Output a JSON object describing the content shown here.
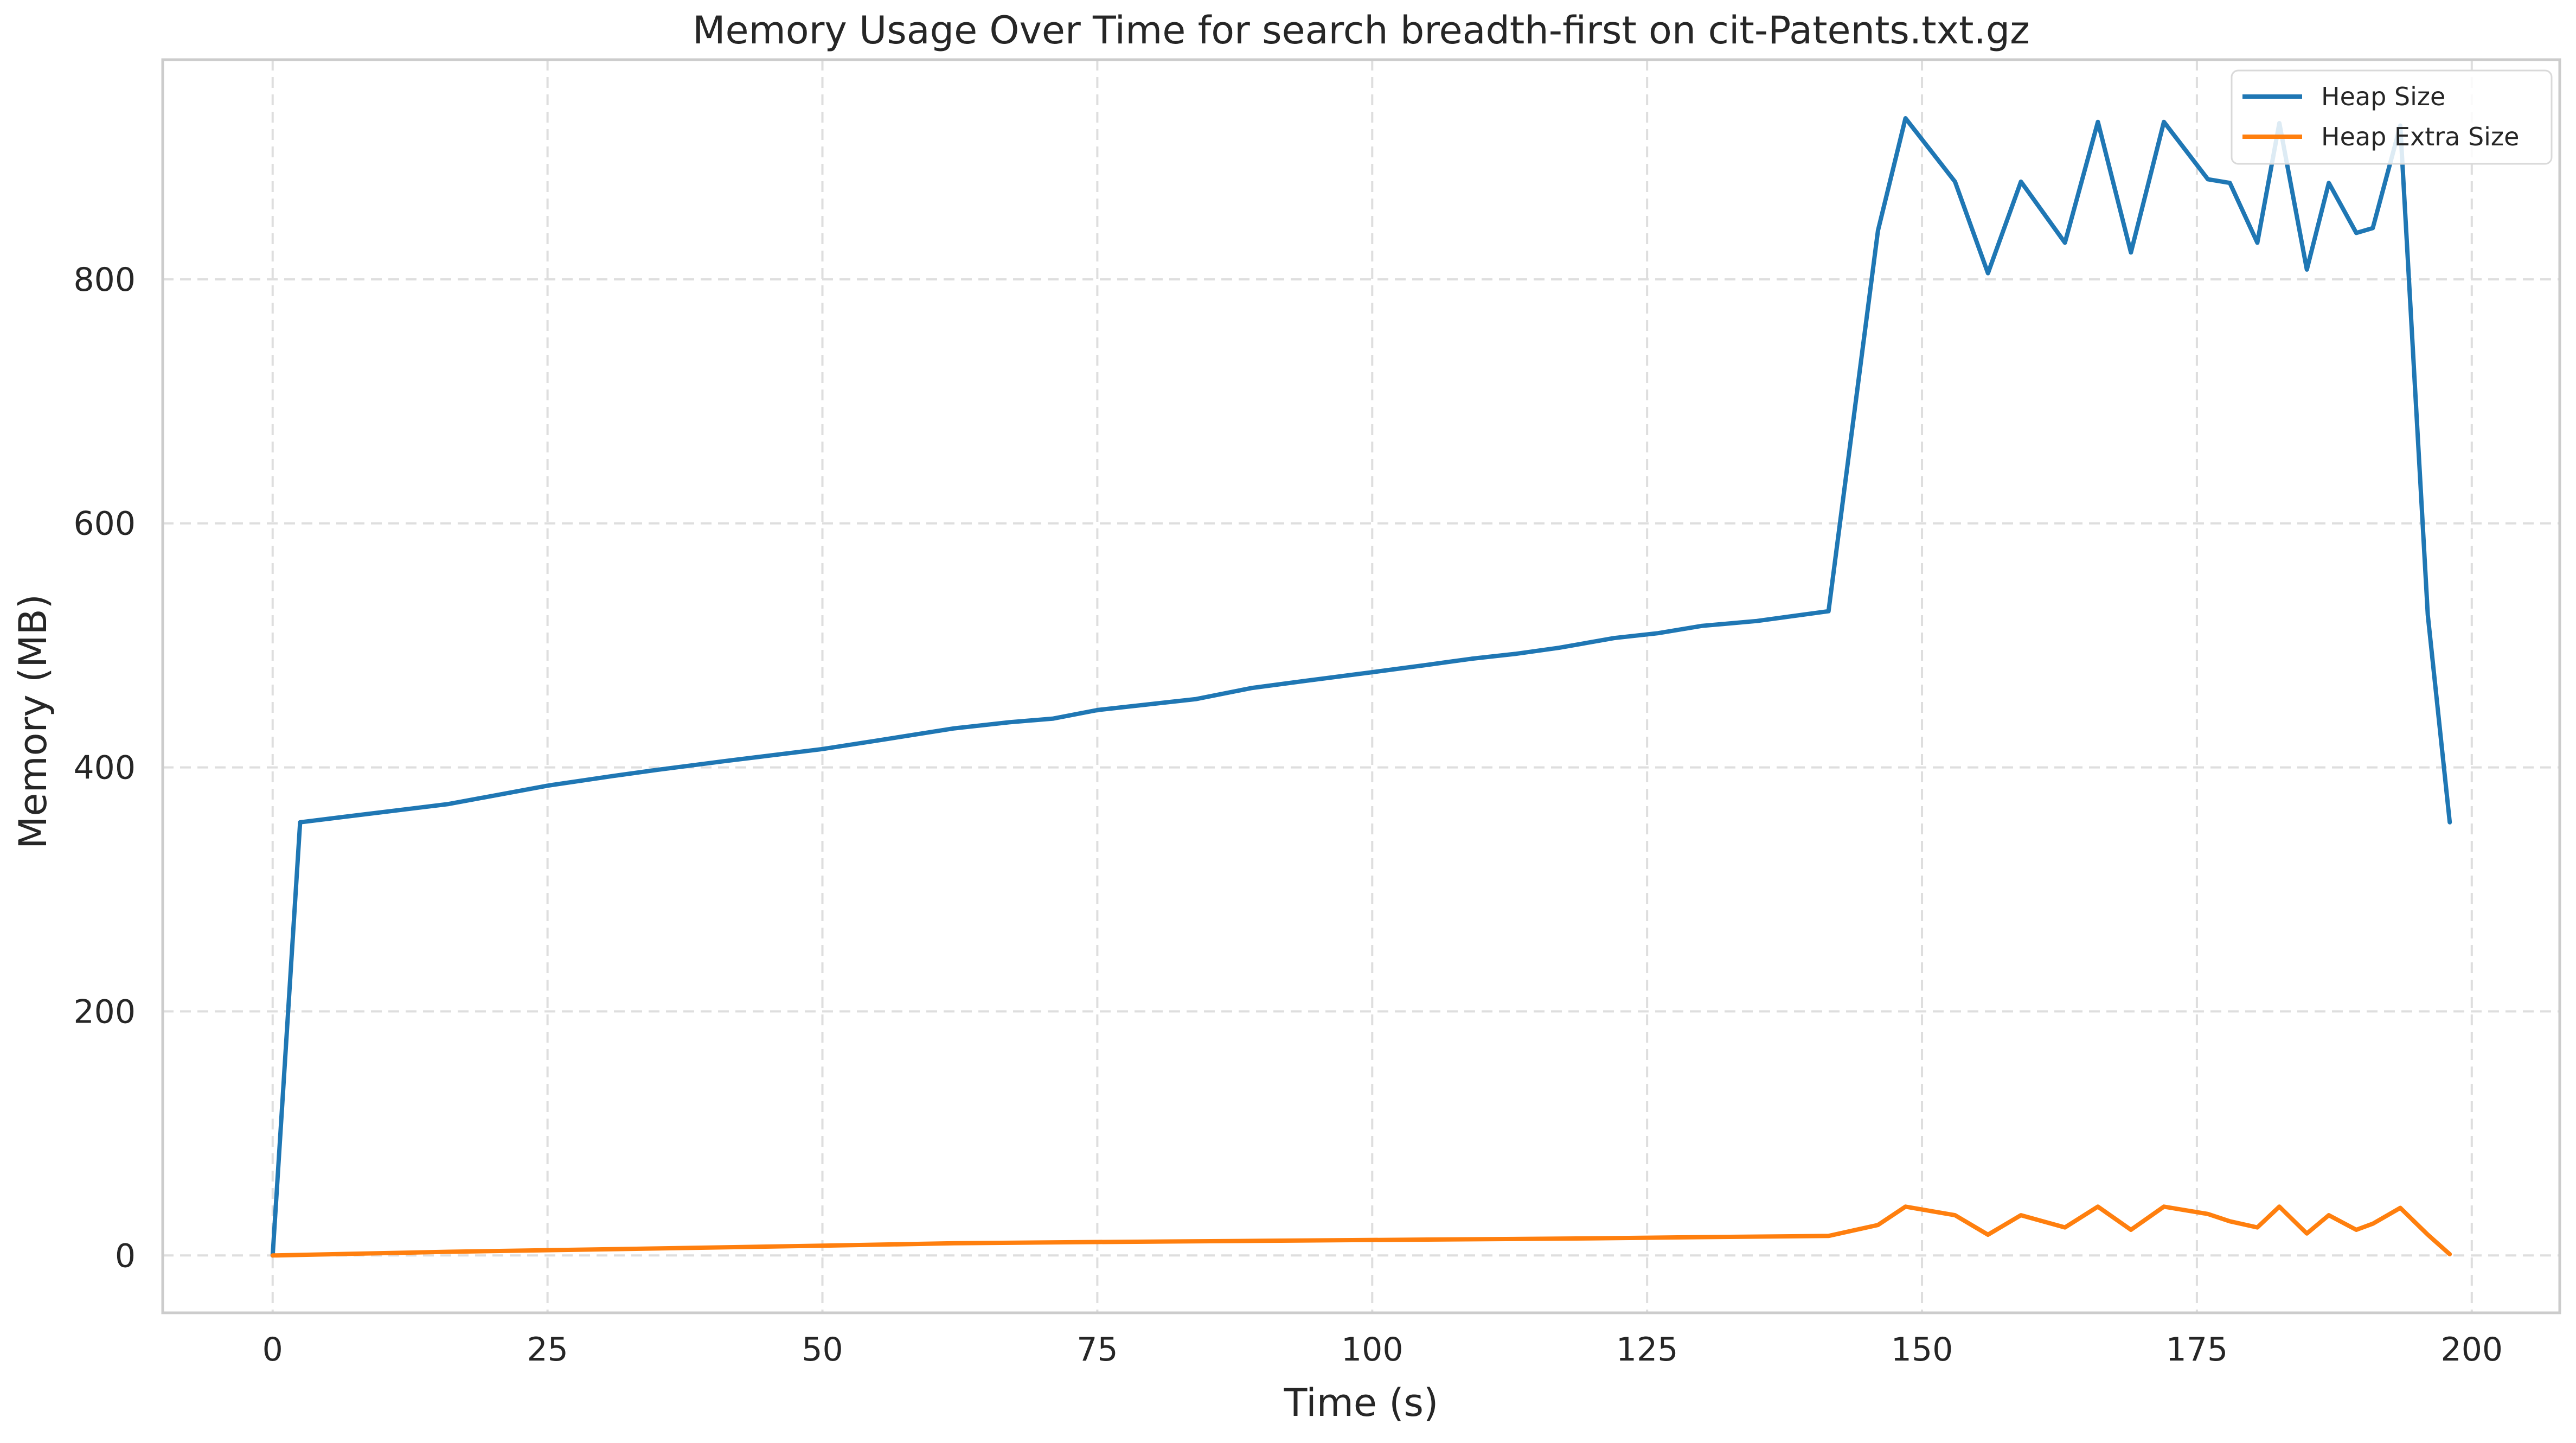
{
  "chart_data": {
    "type": "line",
    "title": "Memory Usage Over Time for search breadth-first on cit-Patents.txt.gz",
    "xlabel": "Time (s)",
    "ylabel": "Memory (MB)",
    "xlim": [
      -10,
      208
    ],
    "ylim": [
      -47,
      980
    ],
    "xticks": [
      0,
      25,
      50,
      75,
      100,
      125,
      150,
      175,
      200
    ],
    "yticks": [
      0,
      200,
      400,
      600,
      800
    ],
    "grid": true,
    "legend_position": "top-right",
    "series": [
      {
        "name": "Heap Size",
        "color": "#1f77b4",
        "x": [
          0,
          2.5,
          7,
          16,
          25,
          31,
          35,
          41,
          50,
          55,
          62,
          67,
          71,
          75,
          80,
          84,
          89,
          94,
          100,
          105,
          109,
          113,
          117,
          122,
          126,
          130,
          135,
          141.5,
          146,
          148.5,
          153,
          156,
          159,
          163,
          166,
          169,
          172,
          176,
          178,
          180.5,
          182.5,
          185,
          187,
          189.5,
          191,
          193.5,
          196,
          198
        ],
        "y": [
          0,
          355,
          360,
          370,
          385,
          393,
          398,
          405,
          415,
          422,
          432,
          437,
          440,
          447,
          452,
          456,
          465,
          471,
          478,
          484,
          489,
          493,
          498,
          506,
          510,
          516,
          520,
          528,
          840,
          932,
          880,
          805,
          880,
          830,
          929,
          822,
          929,
          882,
          879,
          830,
          928,
          808,
          879,
          838,
          842,
          926,
          525,
          355
        ]
      },
      {
        "name": "Heap Extra Size",
        "color": "#ff7f0e",
        "x": [
          0,
          16,
          30,
          50,
          62,
          75,
          90,
          105,
          120,
          130,
          141.5,
          146,
          148.5,
          153,
          156,
          159,
          163,
          166,
          169,
          172,
          176,
          178,
          180.5,
          182.5,
          185,
          187,
          189.5,
          191,
          193.5,
          196,
          198
        ],
        "y": [
          0,
          3,
          5,
          8,
          10,
          11,
          12,
          13,
          14,
          15,
          16,
          25,
          40,
          33,
          17,
          33,
          23,
          40,
          21,
          40,
          34,
          28,
          23,
          40,
          18,
          33,
          21,
          26,
          39,
          17,
          1
        ]
      }
    ]
  }
}
